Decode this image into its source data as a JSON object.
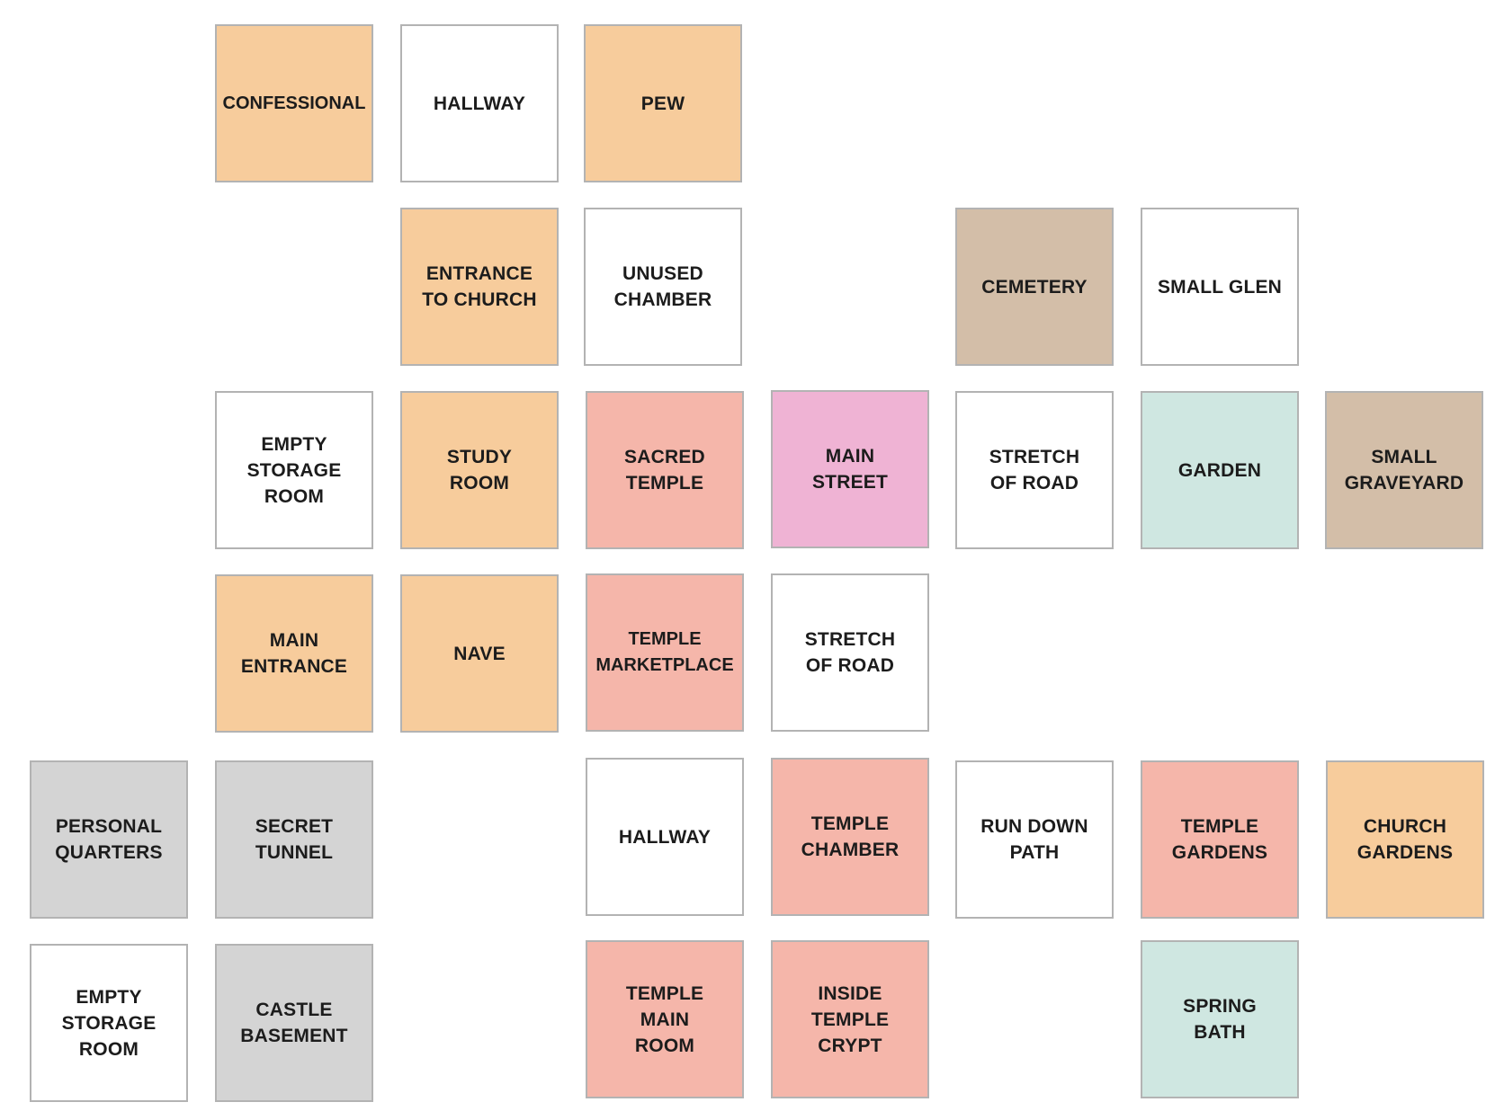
{
  "colors": {
    "church": "#f7cc9c",
    "temple": "#f5b6aa",
    "street": "#efb3d4",
    "cemetery": "#d3bea8",
    "garden": "#cfe7e1",
    "castle": "#d4d4d4",
    "plain": "#ffffff",
    "border": "#b3b3b3"
  },
  "rooms": [
    {
      "id": "confessional",
      "label": "CONFESSIONAL",
      "color": "church"
    },
    {
      "id": "hallway-church",
      "label": "HALLWAY",
      "color": "plain"
    },
    {
      "id": "pew",
      "label": "PEW",
      "color": "church"
    },
    {
      "id": "entrance-to-church",
      "label": "ENTRANCE\nTO CHURCH",
      "color": "church"
    },
    {
      "id": "unused-chamber",
      "label": "UNUSED\nCHAMBER",
      "color": "plain"
    },
    {
      "id": "cemetery",
      "label": "CEMETERY",
      "color": "cemetery"
    },
    {
      "id": "small-glen",
      "label": "SMALL GLEN",
      "color": "plain"
    },
    {
      "id": "empty-storage-room-1",
      "label": "EMPTY\nSTORAGE\nROOM",
      "color": "plain"
    },
    {
      "id": "study-room",
      "label": "STUDY\nROOM",
      "color": "church"
    },
    {
      "id": "sacred-temple",
      "label": "SACRED\nTEMPLE",
      "color": "temple"
    },
    {
      "id": "main-street",
      "label": "MAIN\nSTREET",
      "color": "street"
    },
    {
      "id": "stretch-of-road-1",
      "label": "STRETCH\nOF ROAD",
      "color": "plain"
    },
    {
      "id": "garden",
      "label": "GARDEN",
      "color": "garden"
    },
    {
      "id": "small-graveyard",
      "label": "SMALL\nGRAVEYARD",
      "color": "cemetery"
    },
    {
      "id": "main-entrance",
      "label": "MAIN\nENTRANCE",
      "color": "church"
    },
    {
      "id": "nave",
      "label": "NAVE",
      "color": "church"
    },
    {
      "id": "temple-marketplace",
      "label": "TEMPLE\nMARKETPLACE",
      "color": "temple"
    },
    {
      "id": "stretch-of-road-2",
      "label": "STRETCH\nOF ROAD",
      "color": "plain"
    },
    {
      "id": "personal-quarters",
      "label": "PERSONAL\nQUARTERS",
      "color": "castle"
    },
    {
      "id": "secret-tunnel",
      "label": "SECRET\nTUNNEL",
      "color": "castle"
    },
    {
      "id": "hallway-temple",
      "label": "HALLWAY",
      "color": "plain"
    },
    {
      "id": "temple-chamber",
      "label": "TEMPLE\nCHAMBER",
      "color": "temple"
    },
    {
      "id": "run-down-path",
      "label": "RUN DOWN\nPATH",
      "color": "plain"
    },
    {
      "id": "temple-gardens",
      "label": "TEMPLE\nGARDENS",
      "color": "temple"
    },
    {
      "id": "church-gardens",
      "label": "CHURCH\nGARDENS",
      "color": "church"
    },
    {
      "id": "empty-storage-room-2",
      "label": "EMPTY\nSTORAGE\nROOM",
      "color": "plain"
    },
    {
      "id": "castle-basement",
      "label": "CASTLE\nBASEMENT",
      "color": "castle"
    },
    {
      "id": "temple-main-room",
      "label": "TEMPLE\nMAIN\nROOM",
      "color": "temple"
    },
    {
      "id": "inside-temple-crypt",
      "label": "INSIDE\nTEMPLE\nCRYPT",
      "color": "temple"
    },
    {
      "id": "spring-bath",
      "label": "SPRING\nBATH",
      "color": "garden"
    }
  ]
}
